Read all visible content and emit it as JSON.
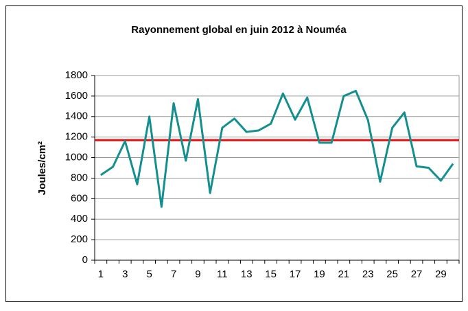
{
  "chart_data": {
    "type": "line",
    "title": "Rayonnement global en juin 2012 à Nouméa",
    "y_label": "Joules/cm²",
    "categories": [
      1,
      null,
      3,
      null,
      5,
      null,
      7,
      null,
      9,
      null,
      11,
      null,
      13,
      null,
      15,
      null,
      17,
      null,
      19,
      null,
      21,
      null,
      23,
      null,
      25,
      null,
      27,
      null,
      29,
      null
    ],
    "series": [
      {
        "color": "#138f8f",
        "values": [
          830,
          910,
          1160,
          740,
          1400,
          520,
          1530,
          970,
          1570,
          655,
          1290,
          1380,
          1250,
          1265,
          1330,
          1625,
          1370,
          1585,
          1145,
          1145,
          1600,
          1650,
          1365,
          765,
          1290,
          1440,
          915,
          900,
          775,
          940
        ]
      }
    ],
    "reference_line": {
      "value": 1170,
      "color": "#e01010"
    },
    "ylim": [
      0,
      1800
    ],
    "yticks": [
      0,
      200,
      400,
      600,
      800,
      1000,
      1200,
      1400,
      1600,
      1800
    ],
    "grid": true
  }
}
